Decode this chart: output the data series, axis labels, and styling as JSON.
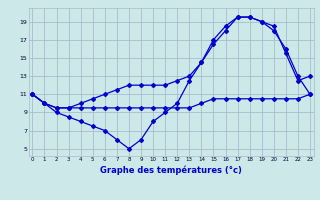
{
  "xlabel": "Graphe des températures (°c)",
  "bg_color": "#cce8e8",
  "grid_color": "#aabbcc",
  "line_color": "#0000cc",
  "x_ticks": [
    0,
    1,
    2,
    3,
    4,
    5,
    6,
    7,
    8,
    9,
    10,
    11,
    12,
    13,
    14,
    15,
    16,
    17,
    18,
    19,
    20,
    21,
    22,
    23
  ],
  "y_ticks": [
    5,
    7,
    9,
    11,
    13,
    15,
    17,
    19
  ],
  "xlim": [
    -0.3,
    23.3
  ],
  "ylim": [
    4.2,
    20.5
  ],
  "line1_x": [
    0,
    1,
    2,
    3,
    4,
    5,
    6,
    7,
    8,
    9,
    10,
    11,
    12,
    13,
    14,
    15,
    16,
    17,
    18,
    19,
    20,
    21,
    22,
    23
  ],
  "line1_y": [
    11,
    10,
    9,
    8.5,
    8,
    7.5,
    7,
    6,
    5,
    6,
    8,
    9,
    10,
    12.5,
    14.5,
    16.5,
    18,
    19.5,
    19.5,
    19,
    18.5,
    15.5,
    12.5,
    13
  ],
  "line2_x": [
    0,
    1,
    2,
    3,
    4,
    5,
    6,
    7,
    8,
    9,
    10,
    11,
    12,
    13,
    14,
    15,
    16,
    17,
    18,
    19,
    20,
    21,
    22,
    23
  ],
  "line2_y": [
    11,
    10,
    9.5,
    9.5,
    10,
    10.5,
    11,
    11.5,
    12,
    12,
    12,
    12,
    12.5,
    13,
    14.5,
    17,
    18.5,
    19.5,
    19.5,
    19,
    18,
    16,
    13,
    11
  ],
  "line3_x": [
    0,
    1,
    2,
    3,
    4,
    5,
    6,
    7,
    8,
    9,
    10,
    11,
    12,
    13,
    14,
    15,
    16,
    17,
    18,
    19,
    20,
    21,
    22,
    23
  ],
  "line3_y": [
    11,
    10,
    9.5,
    9.5,
    9.5,
    9.5,
    9.5,
    9.5,
    9.5,
    9.5,
    9.5,
    9.5,
    9.5,
    9.5,
    10,
    10.5,
    10.5,
    10.5,
    10.5,
    10.5,
    10.5,
    10.5,
    10.5,
    11
  ]
}
